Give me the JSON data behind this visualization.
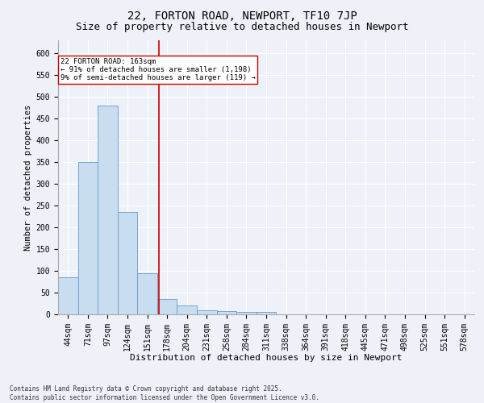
{
  "title1": "22, FORTON ROAD, NEWPORT, TF10 7JP",
  "title2": "Size of property relative to detached houses in Newport",
  "xlabel": "Distribution of detached houses by size in Newport",
  "ylabel": "Number of detached properties",
  "footer": "Contains HM Land Registry data © Crown copyright and database right 2025.\nContains public sector information licensed under the Open Government Licence v3.0.",
  "bin_labels": [
    "44sqm",
    "71sqm",
    "97sqm",
    "124sqm",
    "151sqm",
    "178sqm",
    "204sqm",
    "231sqm",
    "258sqm",
    "284sqm",
    "311sqm",
    "338sqm",
    "364sqm",
    "391sqm",
    "418sqm",
    "445sqm",
    "471sqm",
    "498sqm",
    "525sqm",
    "551sqm",
    "578sqm"
  ],
  "bar_values": [
    85,
    350,
    480,
    235,
    95,
    35,
    20,
    10,
    8,
    5,
    5,
    0,
    0,
    0,
    0,
    0,
    0,
    0,
    0,
    0,
    0
  ],
  "bar_color": "#c8ddf0",
  "bar_edge_color": "#6699cc",
  "vline_x": 4.6,
  "vline_color": "#cc0000",
  "annotation_text": "22 FORTON ROAD: 163sqm\n← 91% of detached houses are smaller (1,198)\n9% of semi-detached houses are larger (119) →",
  "annotation_box_color": "#ffffff",
  "annotation_box_edge": "#cc0000",
  "ylim": [
    0,
    630
  ],
  "yticks": [
    0,
    50,
    100,
    150,
    200,
    250,
    300,
    350,
    400,
    450,
    500,
    550,
    600
  ],
  "background_color": "#eef2f8",
  "grid_color": "#ffffff",
  "title1_fontsize": 10,
  "title2_fontsize": 9,
  "axis_fontsize": 7,
  "xlabel_fontsize": 8,
  "ylabel_fontsize": 7.5
}
